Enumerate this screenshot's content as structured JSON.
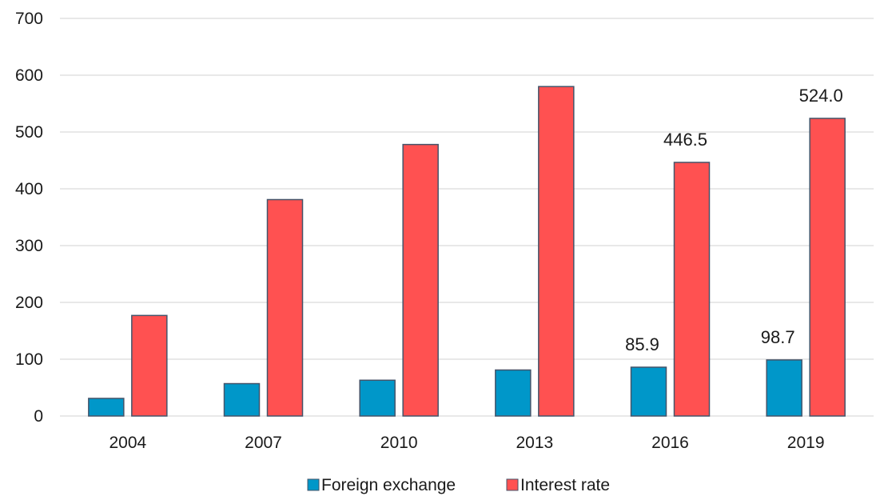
{
  "chart_data": {
    "type": "bar",
    "categories": [
      "2004",
      "2007",
      "2010",
      "2013",
      "2016",
      "2019"
    ],
    "series": [
      {
        "name": "Foreign exchange",
        "color": "#0097c9",
        "values": [
          31,
          57,
          63,
          81,
          85.9,
          98.7
        ],
        "data_labels": [
          "",
          "",
          "",
          "",
          "85.9",
          "98.7"
        ]
      },
      {
        "name": "Interest rate",
        "color": "#ff5151",
        "values": [
          177,
          381,
          478,
          580,
          446.5,
          524.0
        ],
        "data_labels": [
          "",
          "",
          "",
          "",
          "446.5",
          "524.0"
        ]
      }
    ],
    "ylim": [
      0,
      700
    ],
    "yticks": [
      "0",
      "100",
      "200",
      "300",
      "400",
      "500",
      "600",
      "700"
    ],
    "grid": true,
    "legend_position": "bottom",
    "title": "",
    "xlabel": "",
    "ylabel": ""
  }
}
